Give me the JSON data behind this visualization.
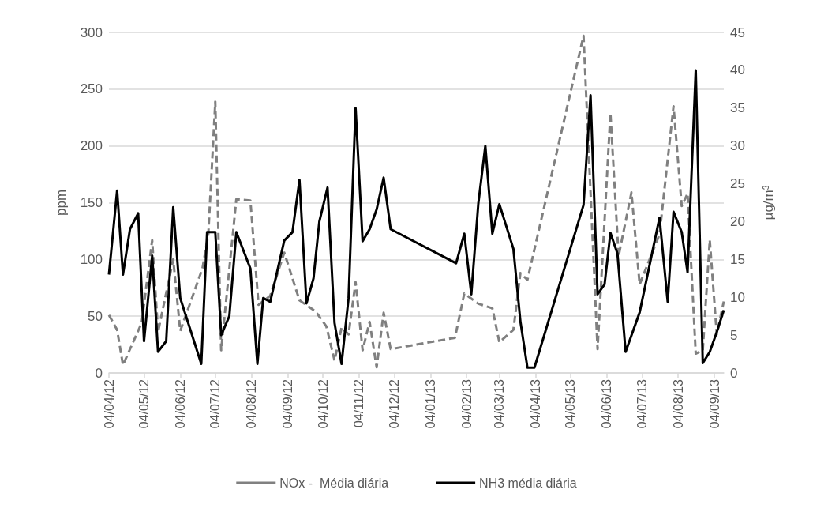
{
  "chart_data": {
    "type": "line",
    "ylabel": "ppm",
    "y2label": "µg/m³",
    "xlim": [
      "2012-04-04",
      "2013-09-12"
    ],
    "xticks": [
      {
        "value": "2012-04-04",
        "label": "04/04/12"
      },
      {
        "value": "2012-05-04",
        "label": "04/05/12"
      },
      {
        "value": "2012-06-04",
        "label": "04/06/12"
      },
      {
        "value": "2012-07-04",
        "label": "04/07/12"
      },
      {
        "value": "2012-08-04",
        "label": "04/08/12"
      },
      {
        "value": "2012-09-04",
        "label": "04/09/12"
      },
      {
        "value": "2012-10-04",
        "label": "04/10/12"
      },
      {
        "value": "2012-11-04",
        "label": "04/11/12"
      },
      {
        "value": "2012-12-04",
        "label": "04/12/12"
      },
      {
        "value": "2013-01-04",
        "label": "04/01/13"
      },
      {
        "value": "2013-02-04",
        "label": "04/02/13"
      },
      {
        "value": "2013-03-04",
        "label": "04/03/13"
      },
      {
        "value": "2013-04-04",
        "label": "04/04/13"
      },
      {
        "value": "2013-05-04",
        "label": "04/05/13"
      },
      {
        "value": "2013-06-04",
        "label": "04/06/13"
      },
      {
        "value": "2013-07-04",
        "label": "04/07/13"
      },
      {
        "value": "2013-08-04",
        "label": "04/08/13"
      },
      {
        "value": "2013-09-04",
        "label": "04/09/13"
      }
    ],
    "ylim": [
      0,
      300
    ],
    "yticks": [
      0,
      50,
      100,
      150,
      200,
      250,
      300
    ],
    "y2lim": [
      0,
      45
    ],
    "y2ticks": [
      0,
      5,
      10,
      15,
      20,
      25,
      30,
      35,
      40,
      45
    ],
    "grid": "y",
    "legend": "bottom",
    "marker": "none",
    "series": [
      {
        "name": "NOx -  Média diária",
        "color": "#808080",
        "line_style": "dashed",
        "x": [
          "2012-04-04",
          "2012-04-11",
          "2012-04-16",
          "2012-05-02",
          "2012-05-11",
          "2012-05-16",
          "2012-05-29",
          "2012-06-04",
          "2012-06-23",
          "2012-06-28",
          "2012-07-04",
          "2012-07-09",
          "2012-07-22",
          "2012-08-03",
          "2012-08-10",
          "2012-08-20",
          "2012-09-01",
          "2012-09-14",
          "2012-09-28",
          "2012-10-07",
          "2012-10-14",
          "2012-10-20",
          "2012-10-26",
          "2012-11-01",
          "2012-11-07",
          "2012-11-13",
          "2012-11-19",
          "2012-11-25",
          "2012-12-01",
          "2013-01-25",
          "2013-02-02",
          "2013-02-14",
          "2013-02-26",
          "2013-03-04",
          "2013-03-16",
          "2013-03-22",
          "2013-03-28",
          "2013-05-15",
          "2013-05-27",
          "2013-06-07",
          "2013-06-14",
          "2013-06-25",
          "2013-07-02",
          "2013-07-19",
          "2013-07-31",
          "2013-08-07",
          "2013-08-12",
          "2013-08-19",
          "2013-08-25",
          "2013-08-31",
          "2013-09-06",
          "2013-09-12"
        ],
        "values": [
          51,
          38,
          7,
          44,
          117,
          36,
          100,
          37,
          92,
          122,
          239,
          20,
          153,
          152,
          60,
          68,
          106,
          64,
          54,
          41,
          11,
          40,
          34,
          80,
          20,
          45,
          5,
          53,
          21,
          31,
          70,
          61,
          57,
          27,
          38,
          88,
          82,
          297,
          21,
          229,
          103,
          159,
          78,
          122,
          235,
          147,
          158,
          17,
          20,
          117,
          34,
          63
        ]
      },
      {
        "name": "NH3 média diária",
        "color": "#000000",
        "line_style": "solid",
        "axis": "y2",
        "x": [
          "2012-04-04",
          "2012-04-11",
          "2012-04-16",
          "2012-04-22",
          "2012-04-29",
          "2012-05-04",
          "2012-05-11",
          "2012-05-16",
          "2012-05-23",
          "2012-05-29",
          "2012-06-04",
          "2012-06-22",
          "2012-06-27",
          "2012-07-04",
          "2012-07-09",
          "2012-07-16",
          "2012-07-22",
          "2012-08-03",
          "2012-08-09",
          "2012-08-14",
          "2012-08-20",
          "2012-09-01",
          "2012-09-08",
          "2012-09-14",
          "2012-09-20",
          "2012-09-26",
          "2012-10-01",
          "2012-10-08",
          "2012-10-14",
          "2012-10-20",
          "2012-10-26",
          "2012-11-01",
          "2012-11-07",
          "2012-11-13",
          "2012-11-19",
          "2012-11-25",
          "2012-12-01",
          "2013-01-26",
          "2013-02-02",
          "2013-02-08",
          "2013-02-14",
          "2013-02-20",
          "2013-02-26",
          "2013-03-04",
          "2013-03-16",
          "2013-03-22",
          "2013-03-28",
          "2013-04-03",
          "2013-05-15",
          "2013-05-21",
          "2013-05-27",
          "2013-06-02",
          "2013-06-07",
          "2013-06-13",
          "2013-06-20",
          "2013-07-02",
          "2013-07-19",
          "2013-07-26",
          "2013-07-31",
          "2013-08-07",
          "2013-08-12",
          "2013-08-19",
          "2013-08-25",
          "2013-08-31",
          "2013-09-06",
          "2013-09-12"
        ],
        "values": [
          13,
          24.1,
          13,
          19,
          21.1,
          4.2,
          15.5,
          2.8,
          4.2,
          21.9,
          9.9,
          1.2,
          18.6,
          18.6,
          5,
          7.5,
          18.6,
          13.8,
          1.2,
          9.9,
          9.4,
          17.5,
          18.6,
          25.5,
          9.2,
          12.5,
          20,
          24.5,
          6.6,
          1.2,
          9.9,
          35,
          17.4,
          19,
          21.6,
          25.8,
          19,
          14.5,
          18.4,
          10.4,
          22.4,
          30,
          18.4,
          22.3,
          16.4,
          6.8,
          0.7,
          0.7,
          22.2,
          36.7,
          10.4,
          11.7,
          18.5,
          15.8,
          2.8,
          8,
          20.5,
          9.4,
          21.3,
          18.6,
          13.3,
          40,
          1.3,
          2.8,
          5.4,
          8.3
        ]
      }
    ]
  }
}
